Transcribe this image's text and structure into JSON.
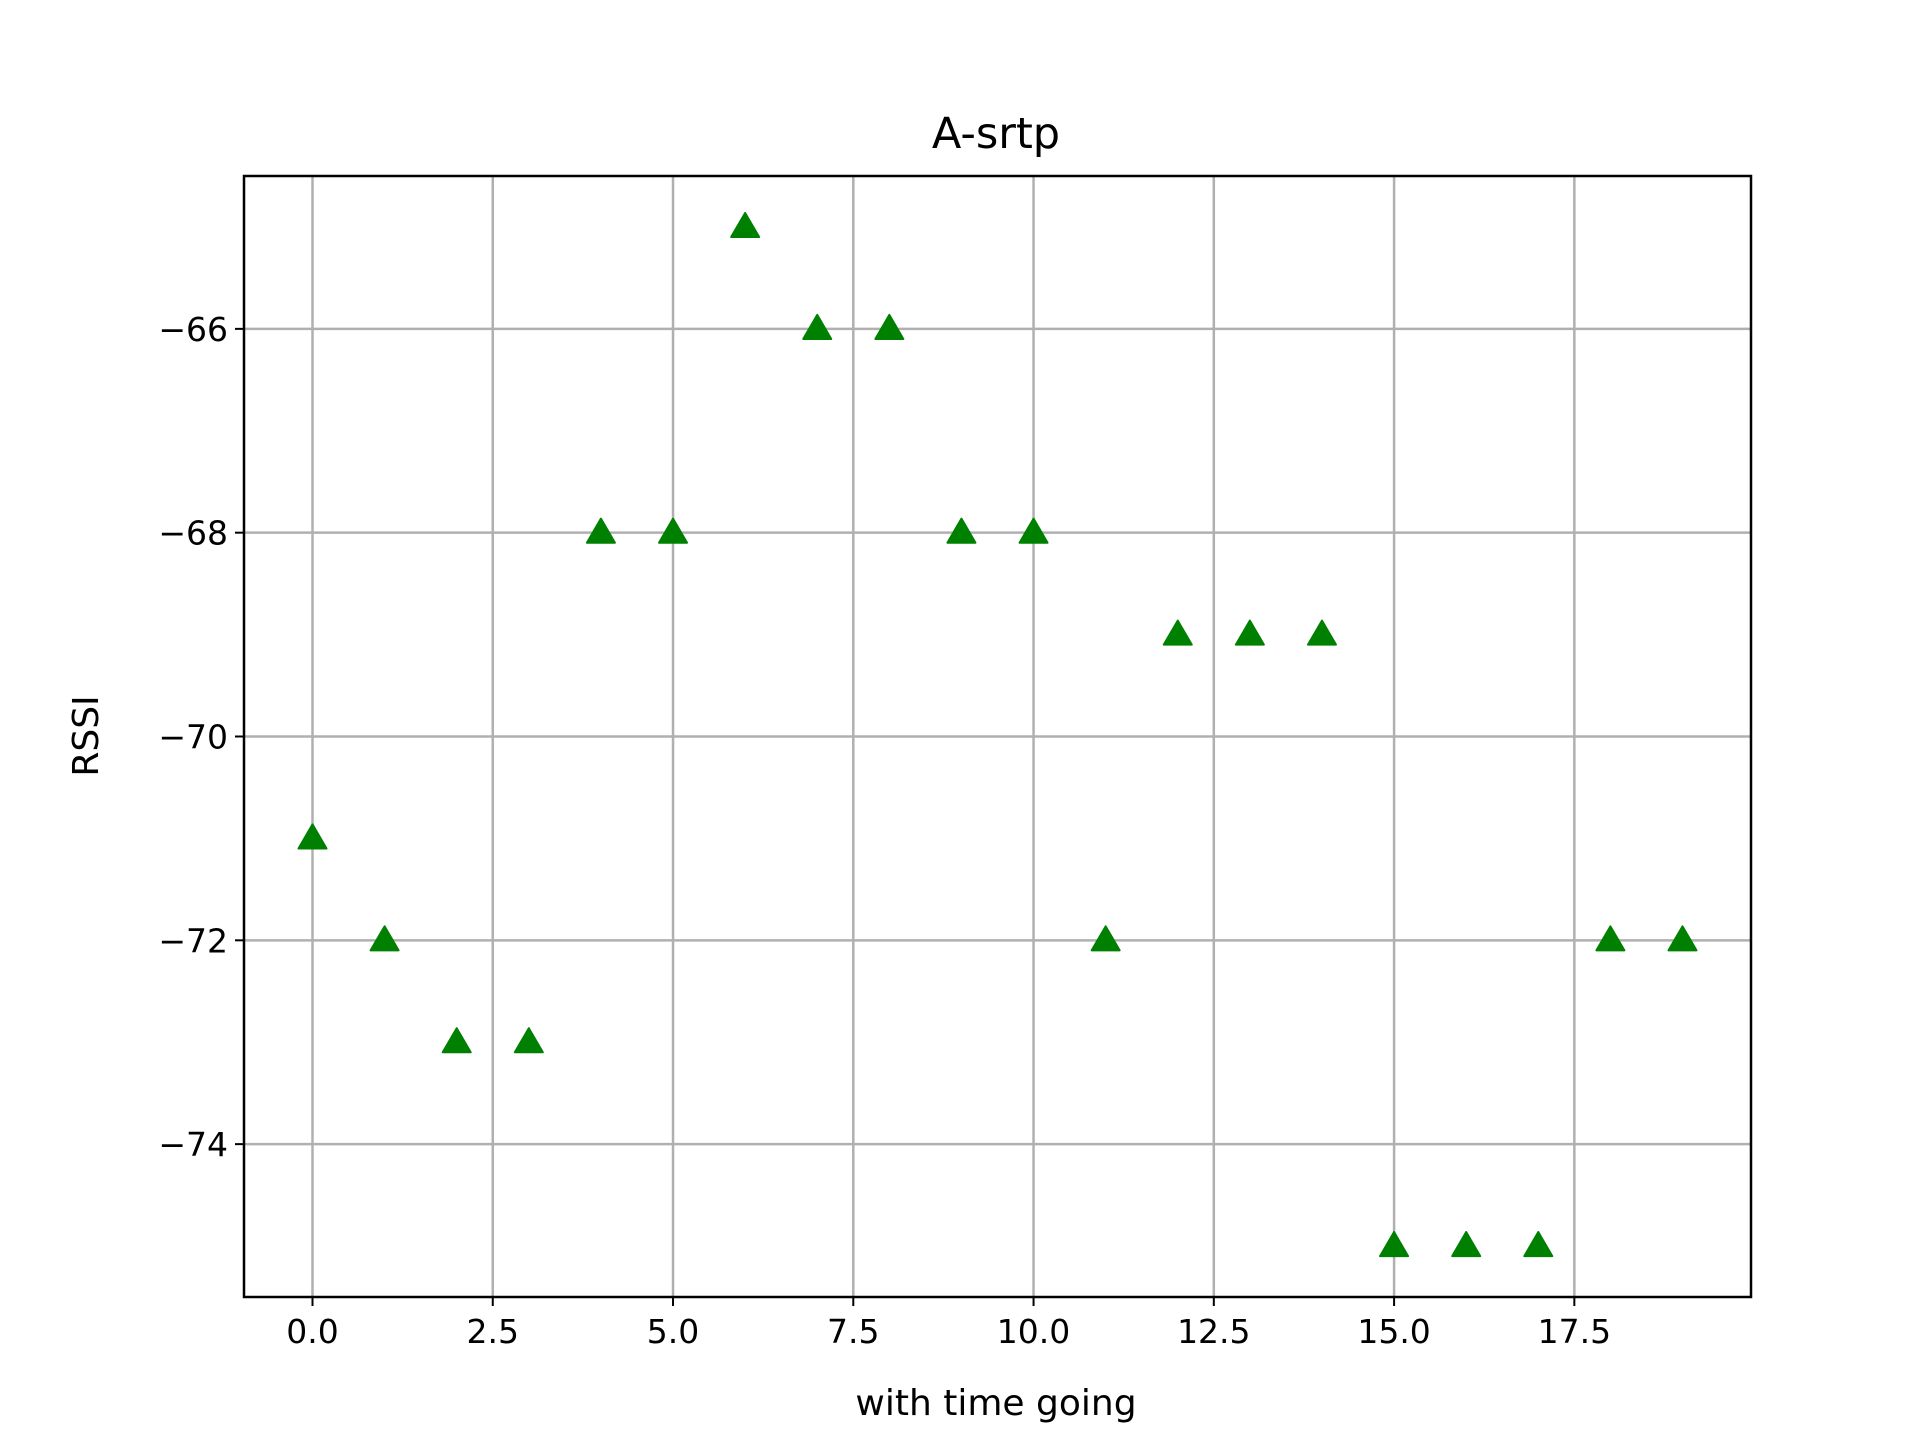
{
  "chart_data": {
    "type": "scatter",
    "title": "A-srtp",
    "xlabel": "with time going",
    "ylabel": "RSSI",
    "marker": "triangle-up",
    "marker_color": "#008000",
    "grid": true,
    "xlim": [
      -0.95,
      19.95
    ],
    "ylim": [
      -75.5,
      -64.5
    ],
    "xticks": [
      0.0,
      2.5,
      5.0,
      7.5,
      10.0,
      12.5,
      15.0,
      17.5
    ],
    "xtick_labels": [
      "0.0",
      "2.5",
      "5.0",
      "7.5",
      "10.0",
      "12.5",
      "15.0",
      "17.5"
    ],
    "yticks": [
      -66,
      -68,
      -70,
      -72,
      -74
    ],
    "ytick_labels": [
      "−66",
      "−68",
      "−70",
      "−72",
      "−74"
    ],
    "x": [
      0,
      1,
      2,
      3,
      4,
      5,
      6,
      7,
      8,
      9,
      10,
      11,
      12,
      13,
      14,
      15,
      16,
      17,
      18,
      19
    ],
    "y": [
      -71,
      -72,
      -73,
      -73,
      -68,
      -68,
      -65,
      -66,
      -66,
      -68,
      -68,
      -72,
      -69,
      -69,
      -69,
      -75,
      -75,
      -75,
      -72,
      -72
    ]
  }
}
